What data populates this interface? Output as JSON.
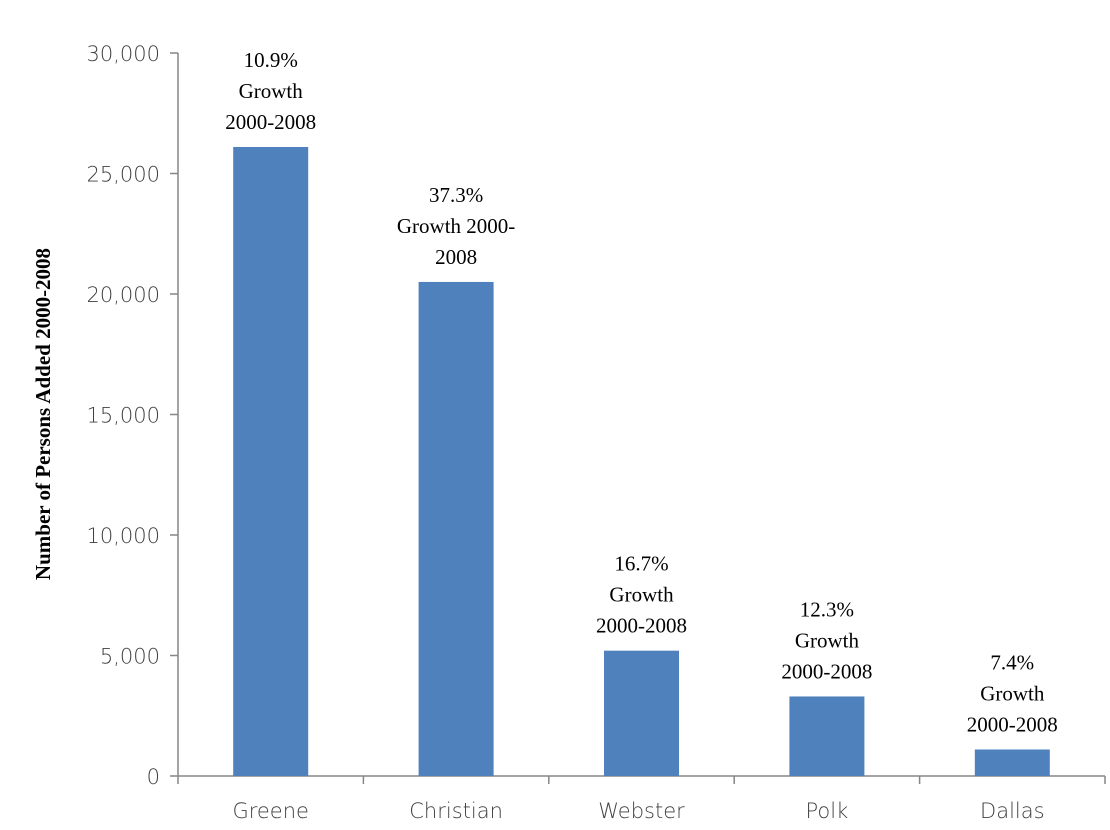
{
  "chart_data": {
    "type": "bar",
    "categories": [
      "Greene",
      "Christian",
      "Webster",
      "Polk",
      "Dallas"
    ],
    "values": [
      26100,
      20500,
      5200,
      3300,
      1100
    ],
    "data_labels": [
      [
        "10.9%",
        "Growth",
        "2000-2008"
      ],
      [
        "37.3%",
        "Growth 2000-",
        "2008"
      ],
      [
        "16.7%",
        "Growth",
        "2000-2008"
      ],
      [
        "12.3%",
        "Growth",
        "2000-2008"
      ],
      [
        "7.4%",
        "Growth",
        "2000-2008"
      ]
    ],
    "ylabel": "Number of Persons Added  2000-2008",
    "xlabel": "",
    "ylim": [
      0,
      30000
    ],
    "yticks": [
      0,
      5000,
      10000,
      15000,
      20000,
      25000,
      30000
    ],
    "ytick_labels": [
      "0",
      "5,000",
      "10,000",
      "15,000",
      "20,000",
      "25,000",
      "30,000"
    ],
    "grid": false,
    "legend": "none",
    "bar_color": "#4F81BD",
    "axis_color": "#868686"
  }
}
